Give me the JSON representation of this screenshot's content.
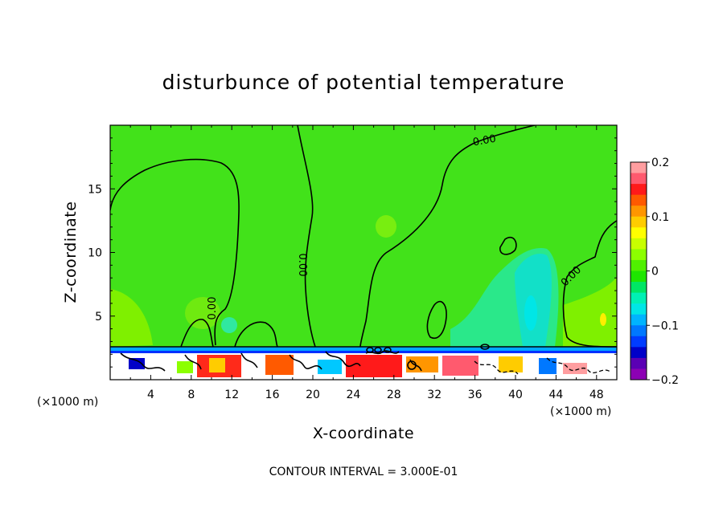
{
  "chart_data": {
    "type": "heatmap",
    "title": "disturbunce of potential temperature",
    "xlabel": "X-coordinate",
    "ylabel": "Z-coordinate",
    "x_unit": "(×1000 m)",
    "x_unit_right": "(×1000 m)",
    "xlim": [
      0,
      50
    ],
    "ylim": [
      0,
      20
    ],
    "x_ticks": [
      4,
      8,
      12,
      16,
      20,
      24,
      28,
      32,
      36,
      40,
      44,
      48
    ],
    "y_ticks": [
      5,
      10,
      15
    ],
    "colorbar": {
      "range": [
        -0.2,
        0.2
      ],
      "tick_values": [
        0.2,
        0.1,
        0,
        -0.1,
        -0.2
      ],
      "tick_labels": [
        "0.2",
        "0.1",
        "0",
        "−0.1",
        "−0.2"
      ],
      "colors": [
        "#ff9ea0",
        "#ff5a6e",
        "#ff1a1a",
        "#ff5a00",
        "#ff9600",
        "#ffcc00",
        "#ffff00",
        "#c8ff00",
        "#8cff00",
        "#50f000",
        "#1ee600",
        "#00e664",
        "#00f0b4",
        "#00e6e6",
        "#00b4ff",
        "#0078ff",
        "#003cff",
        "#0000c8",
        "#5a00b4",
        "#8c00b4"
      ]
    },
    "contour_label": "0.00",
    "contour_interval_note": "CONTOUR INTERVAL = 3.000E-01"
  }
}
